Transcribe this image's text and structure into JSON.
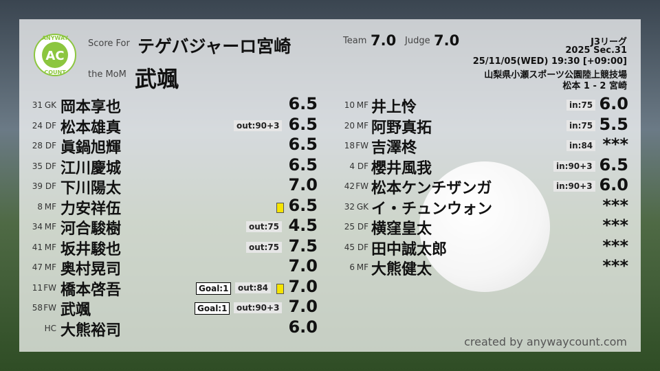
{
  "header": {
    "logo": {
      "top": "ANYWAY",
      "center": "AC",
      "bottom": "COUNT"
    },
    "score_for_label": "Score For",
    "team_name": "テゲバジャーロ宮崎",
    "mom_label": "the MoM",
    "mom_name": "武颯",
    "team_label": "Team",
    "team_score": "7.0",
    "judge_label": "Judge",
    "judge_score": "7.0"
  },
  "match": {
    "league": "J3リーグ",
    "section": "2025 Sec.31",
    "datetime": "25/11/05(WED) 19:30 [+09:00]",
    "venue": "山梨県小瀬スポーツ公園陸上競技場",
    "result": "松本 1 - 2 宮崎"
  },
  "left_players": [
    {
      "number": "31",
      "position": "GK",
      "name": "岡本享也",
      "rating": "6.5"
    },
    {
      "number": "24",
      "position": "DF",
      "name": "松本雄真",
      "notes": [
        "out:90+3"
      ],
      "rating": "6.5"
    },
    {
      "number": "28",
      "position": "DF",
      "name": "眞鍋旭輝",
      "rating": "6.5"
    },
    {
      "number": "35",
      "position": "DF",
      "name": "江川慶城",
      "rating": "6.5"
    },
    {
      "number": "39",
      "position": "DF",
      "name": "下川陽太",
      "rating": "7.0"
    },
    {
      "number": "8",
      "position": "MF",
      "name": "力安祥伍",
      "yellow_card": true,
      "rating": "6.5"
    },
    {
      "number": "34",
      "position": "MF",
      "name": "河合駿樹",
      "notes": [
        "out:75"
      ],
      "rating": "4.5"
    },
    {
      "number": "41",
      "position": "MF",
      "name": "坂井駿也",
      "notes": [
        "out:75"
      ],
      "rating": "7.5"
    },
    {
      "number": "47",
      "position": "MF",
      "name": "奥村晃司",
      "rating": "7.0"
    },
    {
      "number": "11",
      "position": "FW",
      "name": "橋本啓吾",
      "goals": "Goal:1",
      "notes": [
        "out:84"
      ],
      "yellow_card": true,
      "rating": "7.0"
    },
    {
      "number": "58",
      "position": "FW",
      "name": "武颯",
      "goals": "Goal:1",
      "notes": [
        "out:90+3"
      ],
      "rating": "7.0"
    },
    {
      "position": "HC",
      "name": "大熊裕司",
      "rating": "6.0"
    }
  ],
  "right_players": [
    {
      "number": "10",
      "position": "MF",
      "name": "井上怜",
      "notes": [
        "in:75"
      ],
      "rating": "6.0"
    },
    {
      "number": "20",
      "position": "MF",
      "name": "阿野真拓",
      "notes": [
        "in:75"
      ],
      "rating": "5.5"
    },
    {
      "number": "18",
      "position": "FW",
      "name": "吉澤柊",
      "notes": [
        "in:84"
      ],
      "rating": "***"
    },
    {
      "number": "4",
      "position": "DF",
      "name": "櫻井風我",
      "notes": [
        "in:90+3"
      ],
      "rating": "6.5"
    },
    {
      "number": "42",
      "position": "FW",
      "name": "松本ケンチザンガ",
      "notes": [
        "in:90+3"
      ],
      "rating": "6.0"
    },
    {
      "number": "32",
      "position": "GK",
      "name": "イ・チュンウォン",
      "rating": "***"
    },
    {
      "number": "25",
      "position": "DF",
      "name": "横窪皇太",
      "rating": "***"
    },
    {
      "number": "45",
      "position": "DF",
      "name": "田中誠太郎",
      "rating": "***"
    },
    {
      "number": "6",
      "position": "MF",
      "name": "大熊健太",
      "rating": "***"
    }
  ],
  "footer": {
    "credit": "created by anywaycount.com"
  }
}
